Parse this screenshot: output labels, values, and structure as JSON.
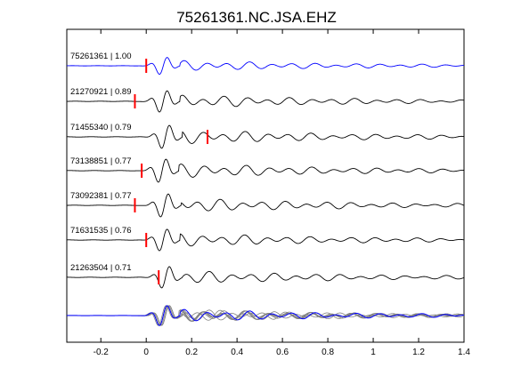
{
  "chart_data": {
    "type": "line",
    "title": "75261361.NC.JSA.EHZ",
    "xlabel": "",
    "ylabel": "",
    "xlim": [
      -0.35,
      1.4
    ],
    "xticks": [
      -0.2,
      0,
      0.2,
      0.4,
      0.6,
      0.8,
      1,
      1.2,
      1.4
    ],
    "xtick_labels": [
      "-0.2",
      "0",
      "0.2",
      "0.4",
      "0.6",
      "0.8",
      "1",
      "1.2",
      "1.4"
    ],
    "grid": false,
    "colors": {
      "reference": "#0000ff",
      "trace": "#000000",
      "stack_other": "#808080",
      "pick_marker": "#ff0000"
    },
    "traces": [
      {
        "label": "75261361 | 1.00",
        "event_id": "75261361",
        "correlation": 1.0,
        "pick_time": 0.0,
        "color": "#0000ff"
      },
      {
        "label": "21270921 | 0.89",
        "event_id": "21270921",
        "correlation": 0.89,
        "pick_time": -0.05,
        "color": "#000000"
      },
      {
        "label": "71455340 | 0.79",
        "event_id": "71455340",
        "correlation": 0.79,
        "pick_time": 0.27,
        "color": "#000000"
      },
      {
        "label": "73138851 | 0.77",
        "event_id": "73138851",
        "correlation": 0.77,
        "pick_time": -0.02,
        "color": "#000000"
      },
      {
        "label": "73092381 | 0.77",
        "event_id": "73092381",
        "correlation": 0.77,
        "pick_time": -0.05,
        "color": "#000000"
      },
      {
        "label": "71631535 | 0.76",
        "event_id": "71631535",
        "correlation": 0.76,
        "pick_time": 0.0,
        "color": "#000000"
      },
      {
        "label": "21263504 | 0.71",
        "event_id": "21263504",
        "correlation": 0.71,
        "pick_time": 0.055,
        "color": "#000000"
      }
    ],
    "stack": {
      "reference_color": "#0000ff",
      "others_color": "#808080"
    }
  }
}
